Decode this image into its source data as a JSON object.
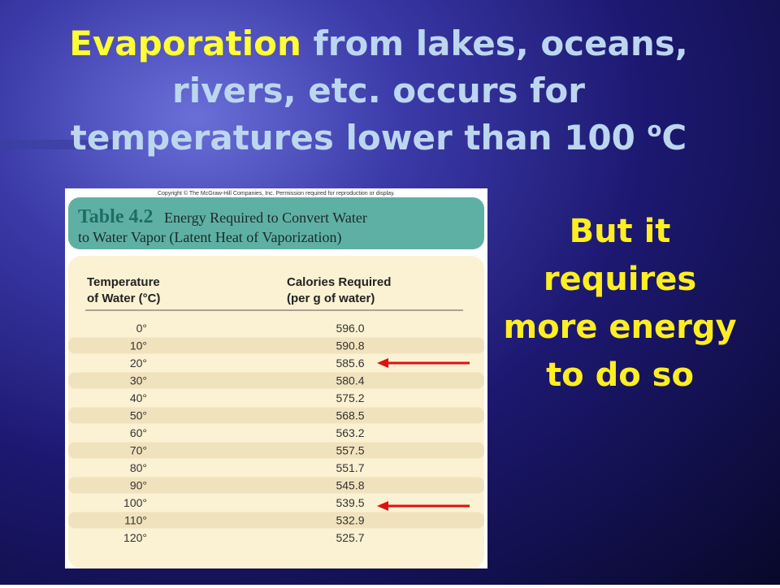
{
  "title": {
    "highlight": "Evaporation",
    "line1": "from lakes, oceans,",
    "line2": "rivers, etc. occurs for",
    "line3": "temperatures lower than 100",
    "superscript": "o",
    "unit": "C"
  },
  "side_text": {
    "lines": [
      "But it",
      "requires",
      "more energy",
      "to do so"
    ]
  },
  "table": {
    "copyright": "Copyright © The McGraw-Hill Companies, Inc. Permission required for reproduction or display.",
    "label": "Table 4.2",
    "caption_line1": "Energy Required to Convert Water",
    "caption_line2": "to Water Vapor (Latent Heat of Vaporization)",
    "headers": [
      [
        "Temperature",
        "of Water (°C)"
      ],
      [
        "Calories Required",
        "(per g of water)"
      ]
    ],
    "rows": [
      [
        "0°",
        "596.0"
      ],
      [
        "10°",
        "590.8"
      ],
      [
        "20°",
        "585.6"
      ],
      [
        "30°",
        "580.4"
      ],
      [
        "40°",
        "575.2"
      ],
      [
        "50°",
        "568.5"
      ],
      [
        "60°",
        "563.2"
      ],
      [
        "70°",
        "557.5"
      ],
      [
        "80°",
        "551.7"
      ],
      [
        "90°",
        "545.8"
      ],
      [
        "100°",
        "539.5"
      ],
      [
        "110°",
        "532.9"
      ],
      [
        "120°",
        "525.7"
      ]
    ]
  }
}
